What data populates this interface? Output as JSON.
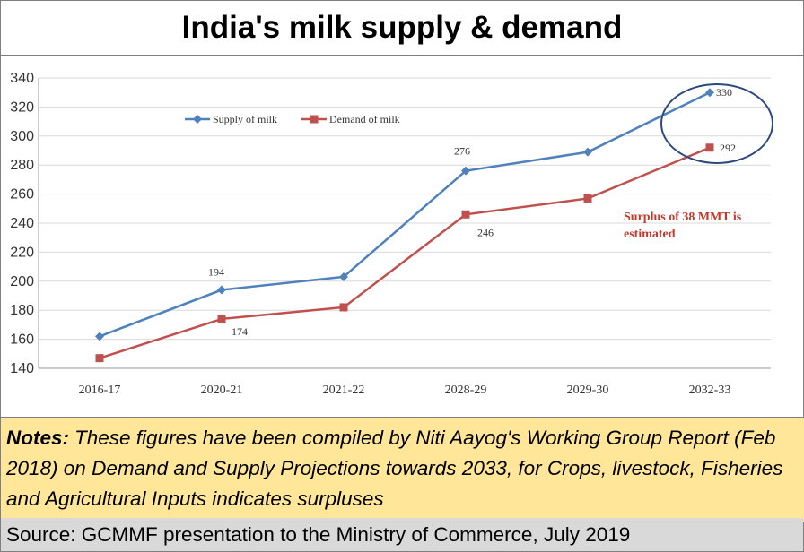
{
  "title": "India's milk supply & demand",
  "notes": {
    "lead": "Notes:",
    "text": "These figures have been compiled by Niti Aayog's Working Group Report (Feb 2018) on Demand and Supply Projections towards 2033, for Crops, livestock, Fisheries and Agricultural Inputs indicates  surpluses"
  },
  "source": "Source: GCMMF presentation to the Ministry of Commerce, July 2019",
  "chart_data": {
    "type": "line",
    "categories": [
      "2016-17",
      "2020-21",
      "2021-22",
      "2028-29",
      "2029-30",
      "2032-33"
    ],
    "series": [
      {
        "name": "Supply of milk",
        "values": [
          162,
          194,
          203,
          276,
          289,
          330
        ],
        "color": "#4f81bd",
        "marker": "diamond",
        "labels": [
          "",
          "194",
          "",
          "276",
          "",
          "330"
        ]
      },
      {
        "name": "Demand of milk",
        "values": [
          147,
          174,
          182,
          246,
          257,
          292
        ],
        "color": "#c0504d",
        "marker": "square",
        "labels": [
          "",
          "174",
          "",
          "246",
          "",
          "292"
        ]
      }
    ],
    "ylim": [
      140,
      340
    ],
    "yticks": [
      140,
      160,
      180,
      200,
      220,
      240,
      260,
      280,
      300,
      320,
      340
    ],
    "grid": true,
    "legend": "top-left",
    "annotation": {
      "lines": [
        "Surplus of 38 MMT is",
        "estimated"
      ],
      "color": "#c0392b"
    },
    "highlight": "circle around 2032-33 values"
  }
}
